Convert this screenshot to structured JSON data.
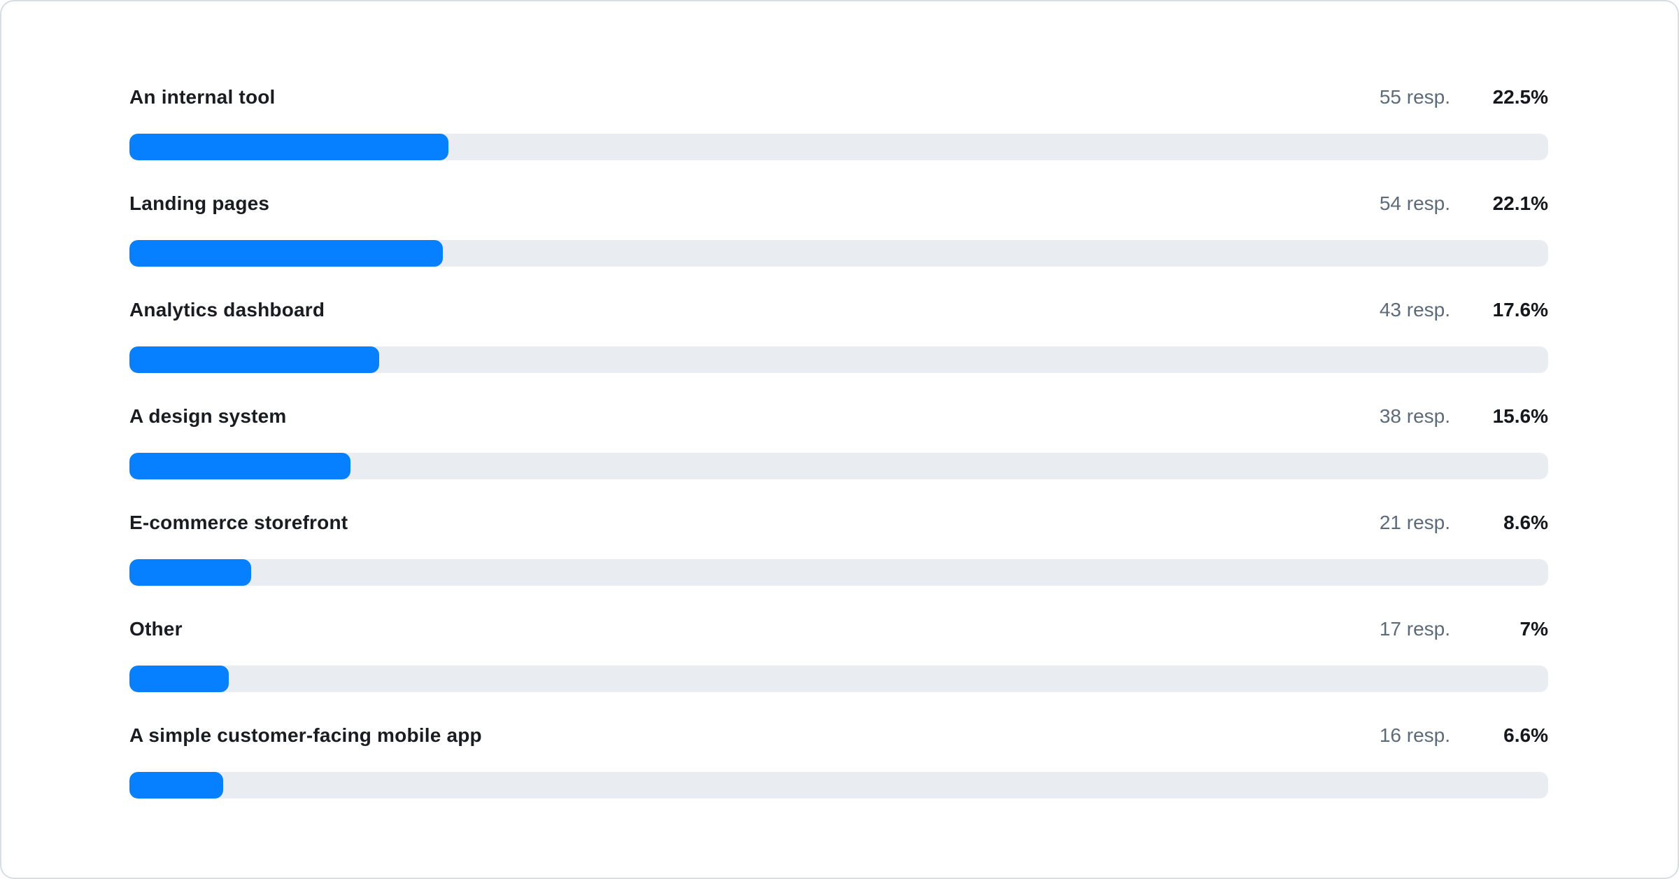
{
  "chart_data": {
    "type": "bar",
    "orientation": "horizontal",
    "title": "",
    "categories": [
      "An internal tool",
      "Landing pages",
      "Analytics dashboard",
      "A design system",
      "E-commerce storefront",
      "Other",
      "A simple customer-facing mobile app"
    ],
    "values": [
      22.5,
      22.1,
      17.6,
      15.6,
      8.6,
      7,
      6.6
    ],
    "value_unit": "percent",
    "response_counts": [
      55,
      54,
      43,
      38,
      21,
      17,
      16
    ],
    "xlim": [
      0,
      100
    ],
    "grid": false,
    "legend": false,
    "bar_fill_color": "#0680fe",
    "bar_track_color": "#e9edf1"
  },
  "rows": [
    {
      "label": "An internal tool",
      "resp": "55 resp.",
      "pct": "22.5%",
      "pct_value": 22.5
    },
    {
      "label": "Landing pages",
      "resp": "54 resp.",
      "pct": "22.1%",
      "pct_value": 22.1
    },
    {
      "label": "Analytics dashboard",
      "resp": "43 resp.",
      "pct": "17.6%",
      "pct_value": 17.6
    },
    {
      "label": "A design system",
      "resp": "38 resp.",
      "pct": "15.6%",
      "pct_value": 15.6
    },
    {
      "label": "E-commerce storefront",
      "resp": "21 resp.",
      "pct": "8.6%",
      "pct_value": 8.6
    },
    {
      "label": "Other",
      "resp": "17 resp.",
      "pct": "7%",
      "pct_value": 7
    },
    {
      "label": "A simple customer-facing mobile app",
      "resp": "16 resp.",
      "pct": "6.6%",
      "pct_value": 6.6
    }
  ],
  "colors": {
    "bar_fill": "#0680fe",
    "bar_track": "#e9edf1",
    "label_text": "#191d22",
    "resp_text": "#5c6b79",
    "pct_text": "#14171b",
    "card_border": "#d8dde2",
    "card_bg": "#ffffff"
  }
}
